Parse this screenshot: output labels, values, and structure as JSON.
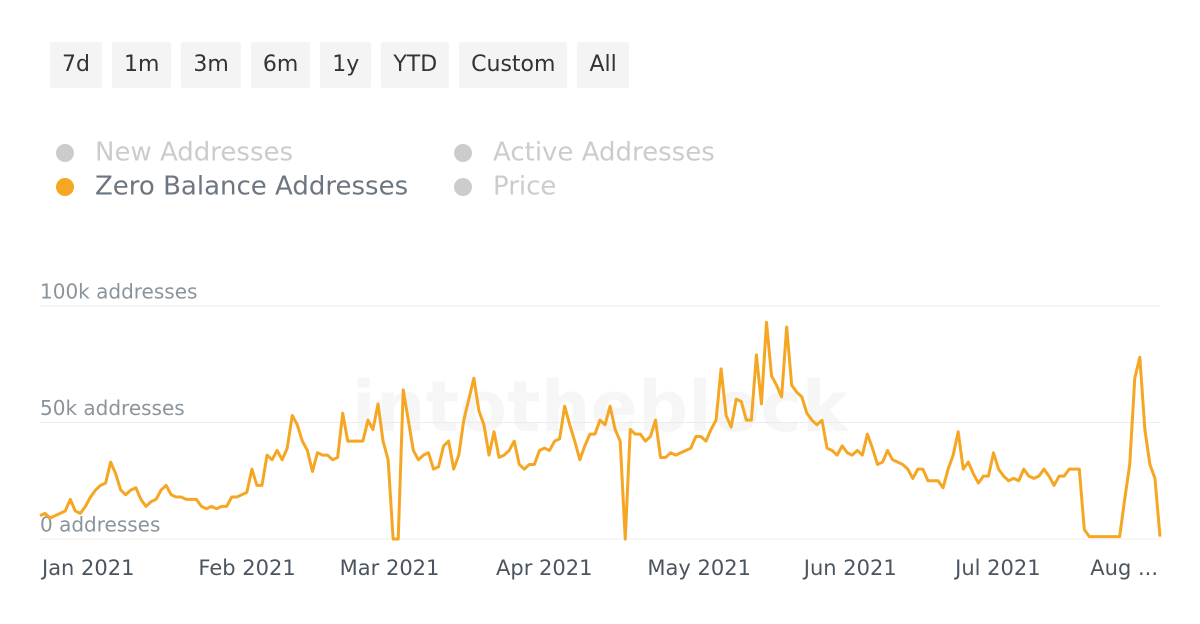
{
  "range_buttons": [
    "7d",
    "1m",
    "3m",
    "6m",
    "1y",
    "YTD",
    "Custom",
    "All"
  ],
  "chart_data": {
    "type": "line",
    "watermark": "intotheblock",
    "series": [
      {
        "name": "New Addresses",
        "visible": false
      },
      {
        "name": "Zero Balance Addresses",
        "visible": true,
        "color": "#f5a623",
        "values": [
          10,
          11,
          9,
          10,
          11,
          12,
          17,
          12,
          11,
          14,
          18,
          21,
          23,
          24,
          33,
          28,
          21,
          19,
          21,
          22,
          17,
          14,
          16,
          17,
          21,
          23,
          19,
          18,
          18,
          17,
          17,
          17,
          14,
          13,
          14,
          13,
          14,
          14,
          18,
          18,
          19,
          20,
          30,
          23,
          23,
          36,
          34,
          38,
          34,
          39,
          53,
          49,
          42,
          38,
          29,
          37,
          36,
          36,
          34,
          35,
          54,
          42,
          42,
          42,
          42,
          51,
          47,
          58,
          42,
          34,
          0,
          0,
          64,
          51,
          38,
          34,
          36,
          37,
          30,
          31,
          40,
          42,
          30,
          36,
          51,
          60,
          69,
          55,
          49,
          36,
          46,
          35,
          36,
          38,
          42,
          32,
          30,
          32,
          32,
          38,
          39,
          38,
          42,
          43,
          57,
          49,
          42,
          34,
          40,
          45,
          45,
          51,
          49,
          57,
          47,
          42,
          0,
          47,
          45,
          45,
          42,
          44,
          51,
          35,
          35,
          37,
          36,
          37,
          38,
          39,
          44,
          44,
          42,
          47,
          51,
          73,
          53,
          48,
          60,
          59,
          51,
          51,
          79,
          58,
          93,
          70,
          66,
          61,
          91,
          66,
          63,
          61,
          54,
          51,
          49,
          51,
          39,
          38,
          36,
          40,
          37,
          36,
          38,
          36,
          45,
          39,
          32,
          33,
          38,
          34,
          33,
          32,
          30,
          26,
          30,
          30,
          25,
          25,
          25,
          22,
          30,
          36,
          46,
          30,
          33,
          28,
          24,
          27,
          27,
          37,
          30,
          27,
          25,
          26,
          25,
          30,
          27,
          26,
          27,
          30,
          27,
          23,
          27,
          27,
          30,
          30,
          30,
          4,
          1,
          1,
          1,
          1,
          1,
          1,
          1,
          17,
          32,
          69,
          78,
          47,
          32,
          26,
          1
        ]
      },
      {
        "name": "Active Addresses",
        "visible": false
      },
      {
        "name": "Price",
        "visible": false
      }
    ],
    "value_scale": 1000,
    "xlim": [
      0,
      222
    ],
    "xticks": [
      {
        "value": 0,
        "label": "Jan 2021"
      },
      {
        "value": 31,
        "label": "Feb 2021"
      },
      {
        "value": 59,
        "label": "Mar 2021"
      },
      {
        "value": 90,
        "label": "Apr 2021"
      },
      {
        "value": 120,
        "label": "May 2021"
      },
      {
        "value": 151,
        "label": "Jun 2021"
      },
      {
        "value": 181,
        "label": "Jul 2021"
      },
      {
        "value": 212,
        "label": "Aug ..."
      }
    ],
    "ylim": [
      0,
      100
    ],
    "yticks": [
      {
        "value": 0,
        "label": "0 addresses"
      },
      {
        "value": 50,
        "label": "50k addresses"
      },
      {
        "value": 100,
        "label": "100k addresses"
      }
    ],
    "grid": true
  }
}
